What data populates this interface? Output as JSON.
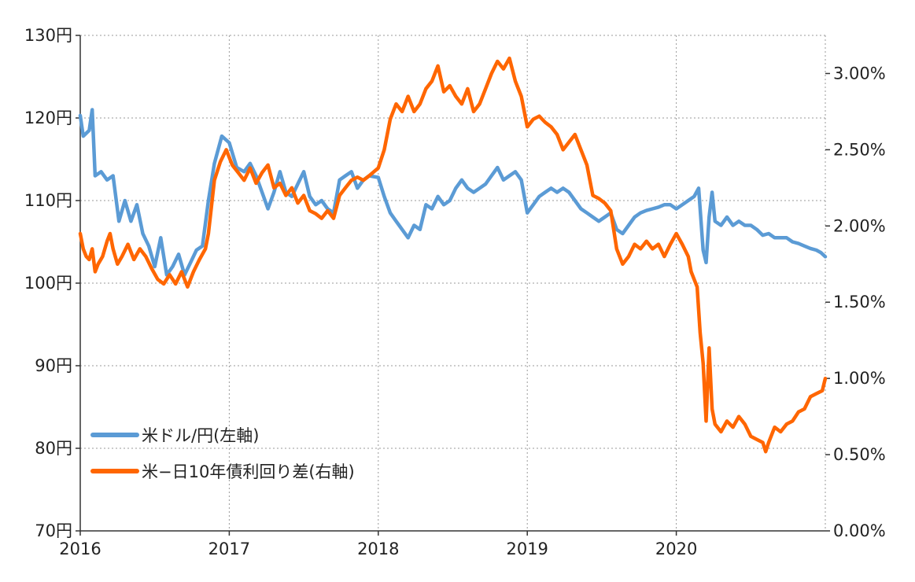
{
  "chart_data": {
    "type": "line",
    "x_labels": [
      "2016",
      "2017",
      "2018",
      "2019",
      "2020"
    ],
    "x_range": [
      2016.0,
      2021.0
    ],
    "y_left": {
      "range": [
        70,
        130
      ],
      "ticks": [
        70,
        80,
        90,
        100,
        110,
        120,
        130
      ],
      "tick_labels": [
        "70円",
        "80円",
        "90円",
        "100円",
        "110円",
        "120円",
        "130円"
      ]
    },
    "y_right": {
      "range": [
        0.0,
        3.25
      ],
      "ticks": [
        0.0,
        0.5,
        1.0,
        1.5,
        2.0,
        2.5,
        3.0
      ],
      "tick_labels": [
        "0.00%",
        "0.50%",
        "1.00%",
        "1.50%",
        "2.00%",
        "2.50%",
        "3.00%"
      ]
    },
    "grid": true,
    "legend_placement": "bottom-left",
    "series": [
      {
        "name": "米ドル/円(左軸)",
        "axis": "left",
        "color": "#5b9bd5",
        "points": [
          [
            2016.0,
            120.3
          ],
          [
            2016.02,
            117.8
          ],
          [
            2016.06,
            118.5
          ],
          [
            2016.08,
            121.0
          ],
          [
            2016.1,
            113.0
          ],
          [
            2016.14,
            113.5
          ],
          [
            2016.18,
            112.5
          ],
          [
            2016.22,
            113.0
          ],
          [
            2016.26,
            107.5
          ],
          [
            2016.3,
            110.0
          ],
          [
            2016.34,
            107.5
          ],
          [
            2016.38,
            109.5
          ],
          [
            2016.42,
            106.0
          ],
          [
            2016.46,
            104.5
          ],
          [
            2016.5,
            102.0
          ],
          [
            2016.54,
            105.5
          ],
          [
            2016.58,
            101.0
          ],
          [
            2016.62,
            102.0
          ],
          [
            2016.66,
            103.5
          ],
          [
            2016.7,
            101.0
          ],
          [
            2016.74,
            102.5
          ],
          [
            2016.78,
            104.0
          ],
          [
            2016.82,
            104.5
          ],
          [
            2016.86,
            110.0
          ],
          [
            2016.9,
            114.5
          ],
          [
            2016.95,
            117.8
          ],
          [
            2017.0,
            117.0
          ],
          [
            2017.05,
            114.0
          ],
          [
            2017.1,
            113.5
          ],
          [
            2017.14,
            114.5
          ],
          [
            2017.18,
            113.0
          ],
          [
            2017.22,
            111.0
          ],
          [
            2017.26,
            109.0
          ],
          [
            2017.3,
            111.0
          ],
          [
            2017.34,
            113.5
          ],
          [
            2017.38,
            111.0
          ],
          [
            2017.42,
            110.5
          ],
          [
            2017.46,
            112.0
          ],
          [
            2017.5,
            113.5
          ],
          [
            2017.54,
            110.5
          ],
          [
            2017.58,
            109.5
          ],
          [
            2017.62,
            110.0
          ],
          [
            2017.66,
            109.0
          ],
          [
            2017.7,
            108.5
          ],
          [
            2017.74,
            112.5
          ],
          [
            2017.78,
            113.0
          ],
          [
            2017.82,
            113.5
          ],
          [
            2017.86,
            111.5
          ],
          [
            2017.9,
            112.5
          ],
          [
            2017.94,
            113.0
          ],
          [
            2018.0,
            112.8
          ],
          [
            2018.04,
            110.5
          ],
          [
            2018.08,
            108.5
          ],
          [
            2018.12,
            107.5
          ],
          [
            2018.16,
            106.5
          ],
          [
            2018.2,
            105.5
          ],
          [
            2018.24,
            107.0
          ],
          [
            2018.28,
            106.5
          ],
          [
            2018.32,
            109.5
          ],
          [
            2018.36,
            109.0
          ],
          [
            2018.4,
            110.5
          ],
          [
            2018.44,
            109.5
          ],
          [
            2018.48,
            110.0
          ],
          [
            2018.52,
            111.5
          ],
          [
            2018.56,
            112.5
          ],
          [
            2018.6,
            111.5
          ],
          [
            2018.64,
            111.0
          ],
          [
            2018.68,
            111.5
          ],
          [
            2018.72,
            112.0
          ],
          [
            2018.76,
            113.0
          ],
          [
            2018.8,
            114.0
          ],
          [
            2018.84,
            112.5
          ],
          [
            2018.88,
            113.0
          ],
          [
            2018.92,
            113.5
          ],
          [
            2018.96,
            112.5
          ],
          [
            2019.0,
            108.5
          ],
          [
            2019.04,
            109.5
          ],
          [
            2019.08,
            110.5
          ],
          [
            2019.12,
            111.0
          ],
          [
            2019.16,
            111.5
          ],
          [
            2019.2,
            111.0
          ],
          [
            2019.24,
            111.5
          ],
          [
            2019.28,
            111.0
          ],
          [
            2019.32,
            110.0
          ],
          [
            2019.36,
            109.0
          ],
          [
            2019.4,
            108.5
          ],
          [
            2019.44,
            108.0
          ],
          [
            2019.48,
            107.5
          ],
          [
            2019.52,
            108.0
          ],
          [
            2019.56,
            108.5
          ],
          [
            2019.6,
            106.5
          ],
          [
            2019.64,
            106.0
          ],
          [
            2019.68,
            107.0
          ],
          [
            2019.72,
            108.0
          ],
          [
            2019.76,
            108.5
          ],
          [
            2019.8,
            108.8
          ],
          [
            2019.84,
            109.0
          ],
          [
            2019.88,
            109.2
          ],
          [
            2019.92,
            109.5
          ],
          [
            2019.96,
            109.5
          ],
          [
            2020.0,
            109.0
          ],
          [
            2020.04,
            109.5
          ],
          [
            2020.08,
            110.0
          ],
          [
            2020.12,
            110.5
          ],
          [
            2020.15,
            111.5
          ],
          [
            2020.18,
            104.0
          ],
          [
            2020.2,
            102.5
          ],
          [
            2020.22,
            108.0
          ],
          [
            2020.24,
            111.0
          ],
          [
            2020.26,
            107.5
          ],
          [
            2020.3,
            107.0
          ],
          [
            2020.34,
            108.0
          ],
          [
            2020.38,
            107.0
          ],
          [
            2020.42,
            107.5
          ],
          [
            2020.46,
            107.0
          ],
          [
            2020.5,
            107.0
          ],
          [
            2020.54,
            106.5
          ],
          [
            2020.58,
            105.8
          ],
          [
            2020.62,
            106.0
          ],
          [
            2020.66,
            105.5
          ],
          [
            2020.7,
            105.5
          ],
          [
            2020.74,
            105.5
          ],
          [
            2020.78,
            105.0
          ],
          [
            2020.82,
            104.8
          ],
          [
            2020.86,
            104.5
          ],
          [
            2020.9,
            104.2
          ],
          [
            2020.94,
            104.0
          ],
          [
            2020.97,
            103.7
          ],
          [
            2021.0,
            103.2
          ]
        ]
      },
      {
        "name": "米−日10年債利回り差(右軸)",
        "axis": "right",
        "color": "#ff6600",
        "points": [
          [
            2016.0,
            1.95
          ],
          [
            2016.02,
            1.85
          ],
          [
            2016.04,
            1.8
          ],
          [
            2016.06,
            1.78
          ],
          [
            2016.08,
            1.85
          ],
          [
            2016.1,
            1.7
          ],
          [
            2016.12,
            1.75
          ],
          [
            2016.15,
            1.8
          ],
          [
            2016.18,
            1.9
          ],
          [
            2016.2,
            1.95
          ],
          [
            2016.22,
            1.85
          ],
          [
            2016.25,
            1.75
          ],
          [
            2016.28,
            1.8
          ],
          [
            2016.32,
            1.88
          ],
          [
            2016.36,
            1.78
          ],
          [
            2016.4,
            1.85
          ],
          [
            2016.44,
            1.8
          ],
          [
            2016.48,
            1.72
          ],
          [
            2016.52,
            1.65
          ],
          [
            2016.56,
            1.62
          ],
          [
            2016.6,
            1.68
          ],
          [
            2016.64,
            1.62
          ],
          [
            2016.68,
            1.7
          ],
          [
            2016.72,
            1.6
          ],
          [
            2016.76,
            1.7
          ],
          [
            2016.8,
            1.78
          ],
          [
            2016.84,
            1.85
          ],
          [
            2016.86,
            1.95
          ],
          [
            2016.9,
            2.3
          ],
          [
            2016.94,
            2.42
          ],
          [
            2016.98,
            2.5
          ],
          [
            2017.02,
            2.4
          ],
          [
            2017.06,
            2.35
          ],
          [
            2017.1,
            2.3
          ],
          [
            2017.14,
            2.38
          ],
          [
            2017.18,
            2.28
          ],
          [
            2017.22,
            2.35
          ],
          [
            2017.26,
            2.4
          ],
          [
            2017.3,
            2.25
          ],
          [
            2017.34,
            2.28
          ],
          [
            2017.38,
            2.2
          ],
          [
            2017.42,
            2.25
          ],
          [
            2017.46,
            2.15
          ],
          [
            2017.5,
            2.2
          ],
          [
            2017.54,
            2.1
          ],
          [
            2017.58,
            2.08
          ],
          [
            2017.62,
            2.05
          ],
          [
            2017.66,
            2.1
          ],
          [
            2017.7,
            2.05
          ],
          [
            2017.74,
            2.2
          ],
          [
            2017.78,
            2.25
          ],
          [
            2017.82,
            2.3
          ],
          [
            2017.86,
            2.32
          ],
          [
            2017.9,
            2.3
          ],
          [
            2017.94,
            2.33
          ],
          [
            2018.0,
            2.38
          ],
          [
            2018.04,
            2.5
          ],
          [
            2018.08,
            2.7
          ],
          [
            2018.12,
            2.8
          ],
          [
            2018.16,
            2.75
          ],
          [
            2018.2,
            2.85
          ],
          [
            2018.24,
            2.75
          ],
          [
            2018.28,
            2.8
          ],
          [
            2018.32,
            2.9
          ],
          [
            2018.36,
            2.95
          ],
          [
            2018.4,
            3.05
          ],
          [
            2018.44,
            2.88
          ],
          [
            2018.48,
            2.92
          ],
          [
            2018.52,
            2.85
          ],
          [
            2018.56,
            2.8
          ],
          [
            2018.6,
            2.9
          ],
          [
            2018.64,
            2.75
          ],
          [
            2018.68,
            2.8
          ],
          [
            2018.72,
            2.9
          ],
          [
            2018.76,
            3.0
          ],
          [
            2018.8,
            3.08
          ],
          [
            2018.84,
            3.03
          ],
          [
            2018.88,
            3.1
          ],
          [
            2018.92,
            2.95
          ],
          [
            2018.96,
            2.85
          ],
          [
            2019.0,
            2.65
          ],
          [
            2019.04,
            2.7
          ],
          [
            2019.08,
            2.72
          ],
          [
            2019.12,
            2.68
          ],
          [
            2019.16,
            2.65
          ],
          [
            2019.2,
            2.6
          ],
          [
            2019.24,
            2.5
          ],
          [
            2019.28,
            2.55
          ],
          [
            2019.32,
            2.6
          ],
          [
            2019.36,
            2.5
          ],
          [
            2019.4,
            2.4
          ],
          [
            2019.44,
            2.2
          ],
          [
            2019.48,
            2.18
          ],
          [
            2019.52,
            2.15
          ],
          [
            2019.56,
            2.1
          ],
          [
            2019.6,
            1.85
          ],
          [
            2019.64,
            1.75
          ],
          [
            2019.68,
            1.8
          ],
          [
            2019.72,
            1.88
          ],
          [
            2019.76,
            1.85
          ],
          [
            2019.8,
            1.9
          ],
          [
            2019.84,
            1.85
          ],
          [
            2019.88,
            1.88
          ],
          [
            2019.92,
            1.8
          ],
          [
            2019.96,
            1.88
          ],
          [
            2020.0,
            1.95
          ],
          [
            2020.04,
            1.88
          ],
          [
            2020.08,
            1.8
          ],
          [
            2020.1,
            1.7
          ],
          [
            2020.12,
            1.65
          ],
          [
            2020.14,
            1.6
          ],
          [
            2020.16,
            1.3
          ],
          [
            2020.18,
            1.1
          ],
          [
            2020.2,
            0.72
          ],
          [
            2020.22,
            1.2
          ],
          [
            2020.24,
            0.8
          ],
          [
            2020.26,
            0.7
          ],
          [
            2020.3,
            0.65
          ],
          [
            2020.34,
            0.72
          ],
          [
            2020.38,
            0.68
          ],
          [
            2020.42,
            0.75
          ],
          [
            2020.46,
            0.7
          ],
          [
            2020.5,
            0.62
          ],
          [
            2020.54,
            0.6
          ],
          [
            2020.58,
            0.58
          ],
          [
            2020.6,
            0.52
          ],
          [
            2020.62,
            0.58
          ],
          [
            2020.66,
            0.68
          ],
          [
            2020.7,
            0.65
          ],
          [
            2020.74,
            0.7
          ],
          [
            2020.78,
            0.72
          ],
          [
            2020.82,
            0.78
          ],
          [
            2020.86,
            0.8
          ],
          [
            2020.9,
            0.88
          ],
          [
            2020.94,
            0.9
          ],
          [
            2020.98,
            0.92
          ],
          [
            2021.0,
            1.0
          ]
        ]
      }
    ]
  }
}
